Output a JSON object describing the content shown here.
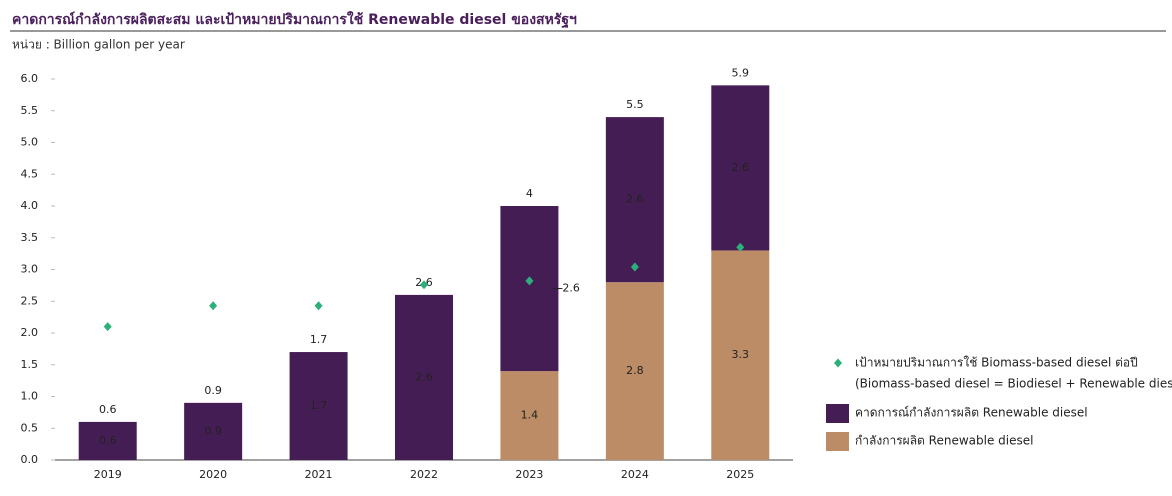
{
  "chart_data": {
    "type": "bar",
    "title": "คาดการณ์กำลังการผลิตสะสม และเป้าหมายปริมาณการใช้ Renewable diesel ของสหรัฐฯ",
    "subtitle": "หน่วย : Billion gallon per year",
    "categories": [
      "2019",
      "2020",
      "2021",
      "2022",
      "2023",
      "2024",
      "2025"
    ],
    "series": [
      {
        "name": "เป้าหมายปริมาณการใช้ Biomass-based diesel ต่อปี",
        "note": "(Biomass-based diesel = Biodiesel + Renewable diesel)",
        "type": "scatter",
        "color": "#2bb07a",
        "values": [
          2.1,
          2.43,
          2.43,
          2.76,
          2.82,
          3.04,
          3.35
        ]
      },
      {
        "name": "คาดการณ์กำลังการผลิต Renewable diesel",
        "type": "bar",
        "color": "#451d55",
        "label_color": "#ffffff",
        "values": [
          0.6,
          0.9,
          1.7,
          2.6,
          2.6,
          2.6,
          2.6
        ]
      },
      {
        "name": "กำลังการผลิต Renewable diesel",
        "type": "bar",
        "color": "#bc8c66",
        "label_color": "#222222",
        "values": [
          null,
          null,
          null,
          null,
          1.4,
          2.8,
          3.3
        ]
      }
    ],
    "totals": [
      0.6,
      0.9,
      1.7,
      2.6,
      4.0,
      5.5,
      5.9
    ],
    "ylim": [
      0,
      6
    ],
    "yticks": [
      {
        "value": 0,
        "label": "0.0"
      },
      0.5,
      {
        "value": 1,
        "label": "1.0"
      },
      1.5,
      {
        "value": 2,
        "label": "2.0"
      },
      2.5,
      {
        "value": 3,
        "label": "3.0"
      },
      3.5,
      {
        "value": 4,
        "label": "4.0"
      },
      4.5,
      {
        "value": 5,
        "label": "5.0"
      },
      5.5,
      {
        "value": 6,
        "label": "6.0"
      }
    ],
    "grid": false,
    "legend": "right"
  }
}
